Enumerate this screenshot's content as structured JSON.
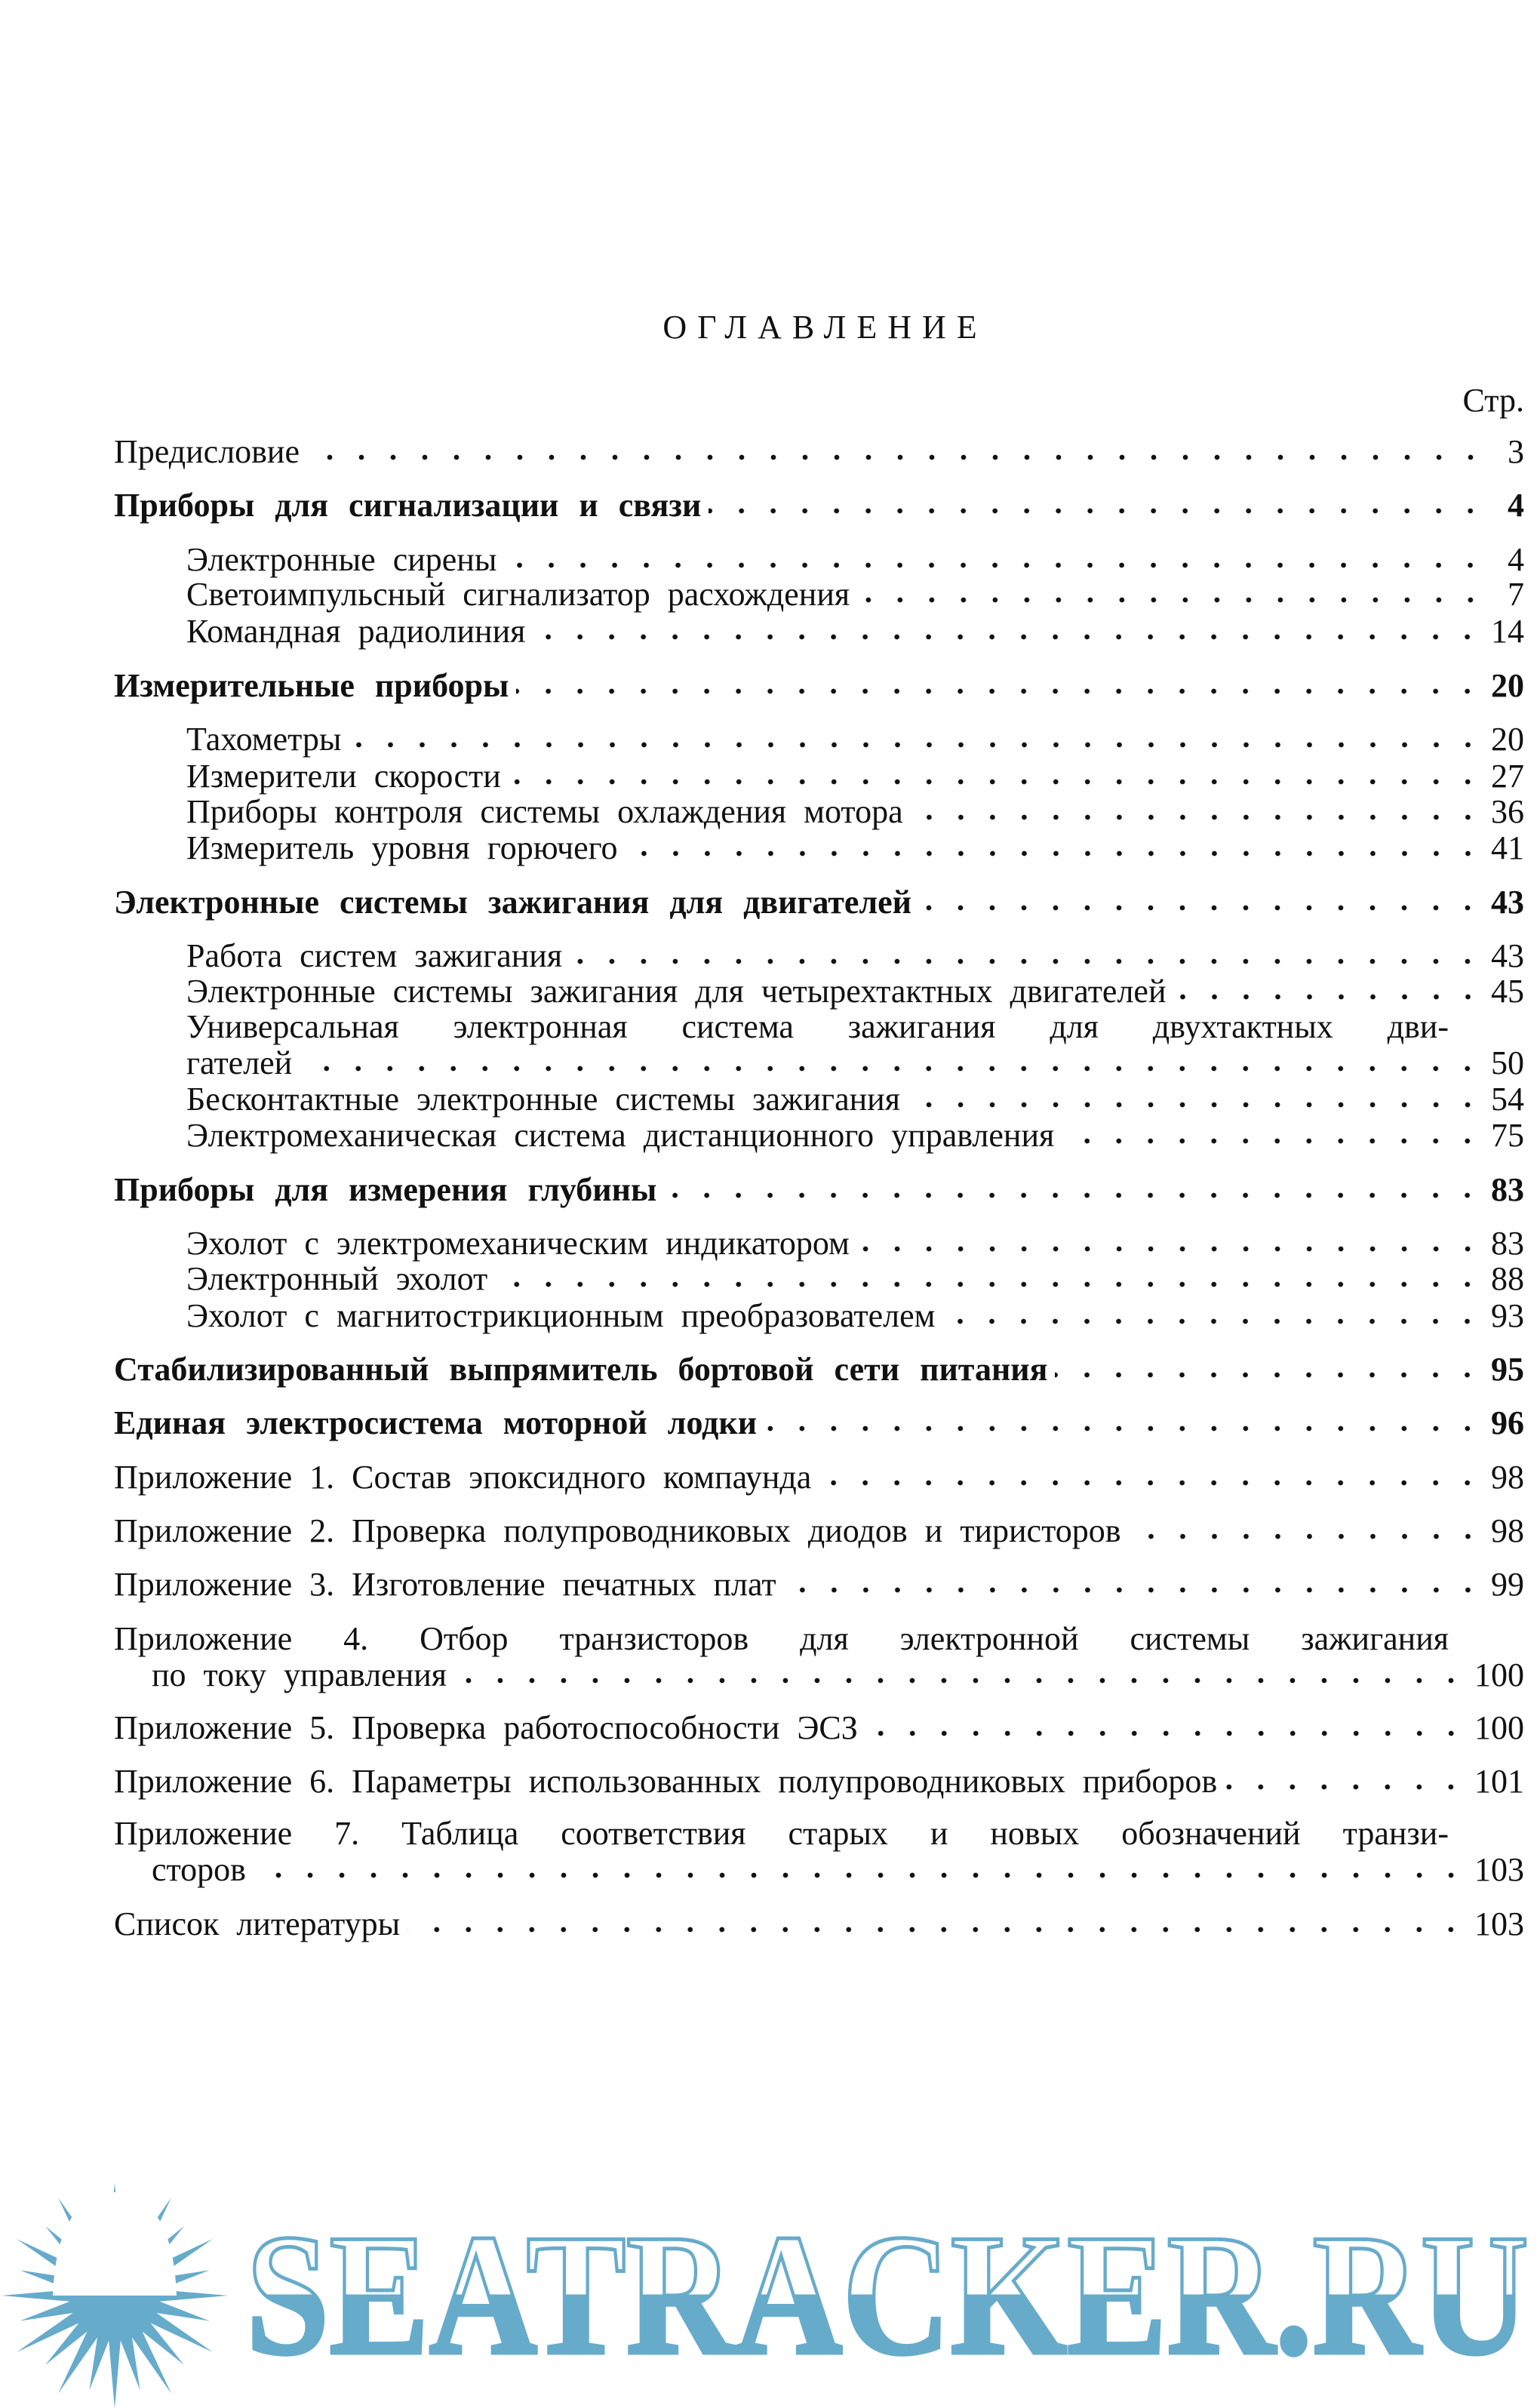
{
  "heading": "ОГЛАВЛЕНИЕ",
  "page_column_label": "Стр.",
  "entries": [
    {
      "label": "Предисловие",
      "page": "3",
      "bold": false,
      "indent": false
    },
    {
      "label": "Приборы для сигнализации и связи",
      "page": "4",
      "bold": true,
      "indent": false
    },
    {
      "label": "Электронные сирены",
      "page": "4",
      "bold": false,
      "indent": true
    },
    {
      "label": "Светоимпульсный сигнализатор расхождения",
      "page": "7",
      "bold": false,
      "indent": true
    },
    {
      "label": "Командная радиолиния",
      "page": "14",
      "bold": false,
      "indent": true
    },
    {
      "label": "Измерительные приборы",
      "page": "20",
      "bold": true,
      "indent": false
    },
    {
      "label": "Тахометры",
      "page": "20",
      "bold": false,
      "indent": true
    },
    {
      "label": "Измерители скорости",
      "page": "27",
      "bold": false,
      "indent": true
    },
    {
      "label": "Приборы контроля системы охлаждения мотора",
      "page": "36",
      "bold": false,
      "indent": true
    },
    {
      "label": "Измеритель уровня горючего",
      "page": "41",
      "bold": false,
      "indent": true
    },
    {
      "label": "Электронные системы зажигания для двигателей",
      "page": "43",
      "bold": true,
      "indent": false
    },
    {
      "label": "Работа систем зажигания",
      "page": "43",
      "bold": false,
      "indent": true
    },
    {
      "label": "Электронные системы зажигания для четырехтактных двигателей",
      "page": "45",
      "bold": false,
      "indent": true
    },
    {
      "label": "Универсальная электронная система зажигания для двухтактных дви-",
      "cont": "гателей",
      "page": "50",
      "bold": false,
      "indent": true
    },
    {
      "label": "Бесконтактные электронные системы зажигания",
      "page": "54",
      "bold": false,
      "indent": true
    },
    {
      "label": "Электромеханическая система дистанционного управления",
      "page": "75",
      "bold": false,
      "indent": true
    },
    {
      "label": "Приборы для измерения глубины",
      "page": "83",
      "bold": true,
      "indent": false
    },
    {
      "label": "Эхолот с электромеханическим индикатором",
      "page": "83",
      "bold": false,
      "indent": true
    },
    {
      "label": "Электронный эхолот",
      "page": "88",
      "bold": false,
      "indent": true
    },
    {
      "label": "Эхолот с магнитострикционным преобразователем",
      "page": "93",
      "bold": false,
      "indent": true
    },
    {
      "label": "Стабилизированный выпрямитель бортовой сети питания",
      "page": "95",
      "bold": true,
      "indent": false
    },
    {
      "label": "Единая электросистема моторной лодки",
      "page": "96",
      "bold": true,
      "indent": false
    },
    {
      "label": "Приложение 1. Состав эпоксидного компаунда",
      "page": "98",
      "bold": false,
      "indent": false
    },
    {
      "label": "Приложение 2. Проверка полупроводниковых диодов и тиристоров",
      "page": "98",
      "bold": false,
      "indent": false
    },
    {
      "label": "Приложение 3. Изготовление печатных плат",
      "page": "99",
      "bold": false,
      "indent": false
    },
    {
      "label": "Приложение 4. Отбор транзисторов для электронной системы зажигания",
      "cont": "по току управления",
      "page": "100",
      "bold": false,
      "indent": false
    },
    {
      "label": "Приложение 5. Проверка работоспособности ЭСЗ",
      "page": "100",
      "bold": false,
      "indent": false
    },
    {
      "label": "Приложение 6. Параметры использованных полупроводниковых приборов",
      "page": "101",
      "bold": false,
      "indent": false
    },
    {
      "label": "Приложение 7. Таблица соответствия старых и новых обозначений транзи-",
      "cont": "сторов",
      "page": "103",
      "bold": false,
      "indent": false
    },
    {
      "label": "Список литературы",
      "page": "103",
      "bold": false,
      "indent": false
    }
  ],
  "watermark": {
    "text": "SEATRACKER.RU",
    "color": "#67abcb"
  }
}
